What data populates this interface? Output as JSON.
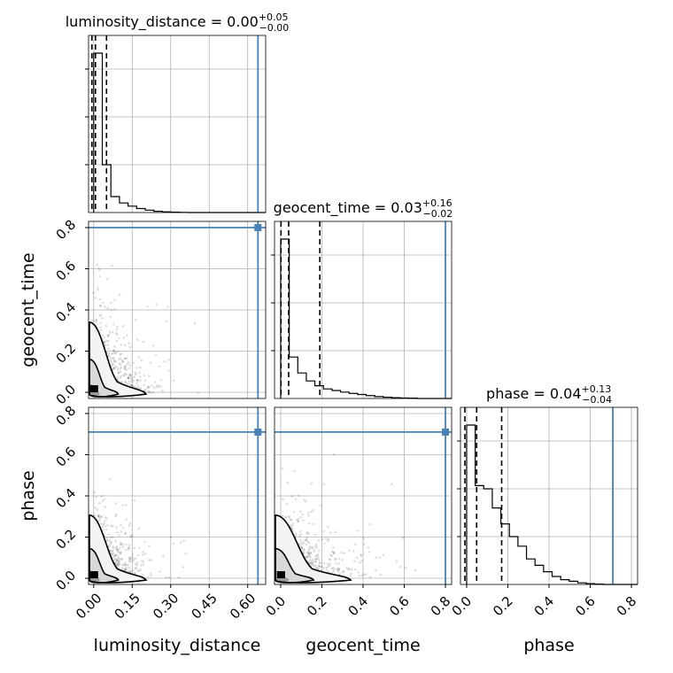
{
  "chart_data": {
    "type": "corner",
    "parameters": [
      "luminosity_distance",
      "geocent_time",
      "phase"
    ],
    "axis_labels": {
      "x": [
        "luminosity_distance",
        "geocent_time",
        "phase"
      ],
      "y": [
        "geocent_time",
        "phase"
      ]
    },
    "titles": [
      {
        "name": "luminosity_distance",
        "prefix": "luminosity_distance = 0.00",
        "plus": "+0.05",
        "minus": "−0.00"
      },
      {
        "name": "geocent_time",
        "prefix": "geocent_time = 0.03",
        "plus": "+0.16",
        "minus": "−0.02"
      },
      {
        "name": "phase",
        "prefix": "phase = 0.04",
        "plus": "+0.13",
        "minus": "−0.04"
      }
    ],
    "ranges": {
      "luminosity_distance": [
        -0.02,
        0.67
      ],
      "geocent_time": [
        -0.03,
        0.83
      ],
      "phase": [
        -0.03,
        0.83
      ]
    },
    "ticks": {
      "luminosity_distance": [
        "0.00",
        "0.15",
        "0.30",
        "0.45",
        "0.60"
      ],
      "geocent_time": [
        "0.0",
        "0.2",
        "0.4",
        "0.6",
        "0.8"
      ],
      "phase": [
        "0.0",
        "0.2",
        "0.4",
        "0.6",
        "0.8"
      ]
    },
    "truths": {
      "luminosity_distance": 0.64,
      "geocent_time": 0.8,
      "phase": 0.71
    },
    "quantiles": {
      "luminosity_distance": [
        0.0,
        0.0,
        0.05
      ],
      "geocent_time": [
        0.01,
        0.03,
        0.19
      ],
      "phase": [
        0.0,
        0.04,
        0.17
      ]
    },
    "histograms": {
      "luminosity_distance": {
        "bin_width": 0.0335,
        "counts": [
          1.0,
          0.3,
          0.1,
          0.06,
          0.04,
          0.025,
          0.015,
          0.008,
          0.004,
          0.002,
          0.001,
          0,
          0,
          0,
          0,
          0,
          0,
          0,
          0,
          0
        ]
      },
      "geocent_time": {
        "bin_width": 0.0415,
        "counts": [
          1.0,
          0.26,
          0.16,
          0.11,
          0.08,
          0.06,
          0.05,
          0.04,
          0.032,
          0.025,
          0.018,
          0.012,
          0.008,
          0.005,
          0.003,
          0.002,
          0,
          0,
          0,
          0
        ]
      },
      "phase": {
        "bin_width": 0.0415,
        "counts": [
          1.0,
          0.62,
          0.6,
          0.48,
          0.38,
          0.3,
          0.24,
          0.16,
          0.12,
          0.08,
          0.05,
          0.03,
          0.02,
          0.01,
          0.005,
          0.002,
          0,
          0,
          0,
          0
        ]
      }
    },
    "truth_color": "#4682b4",
    "grid": true,
    "samples_shown_as": "grey points with density contours"
  }
}
